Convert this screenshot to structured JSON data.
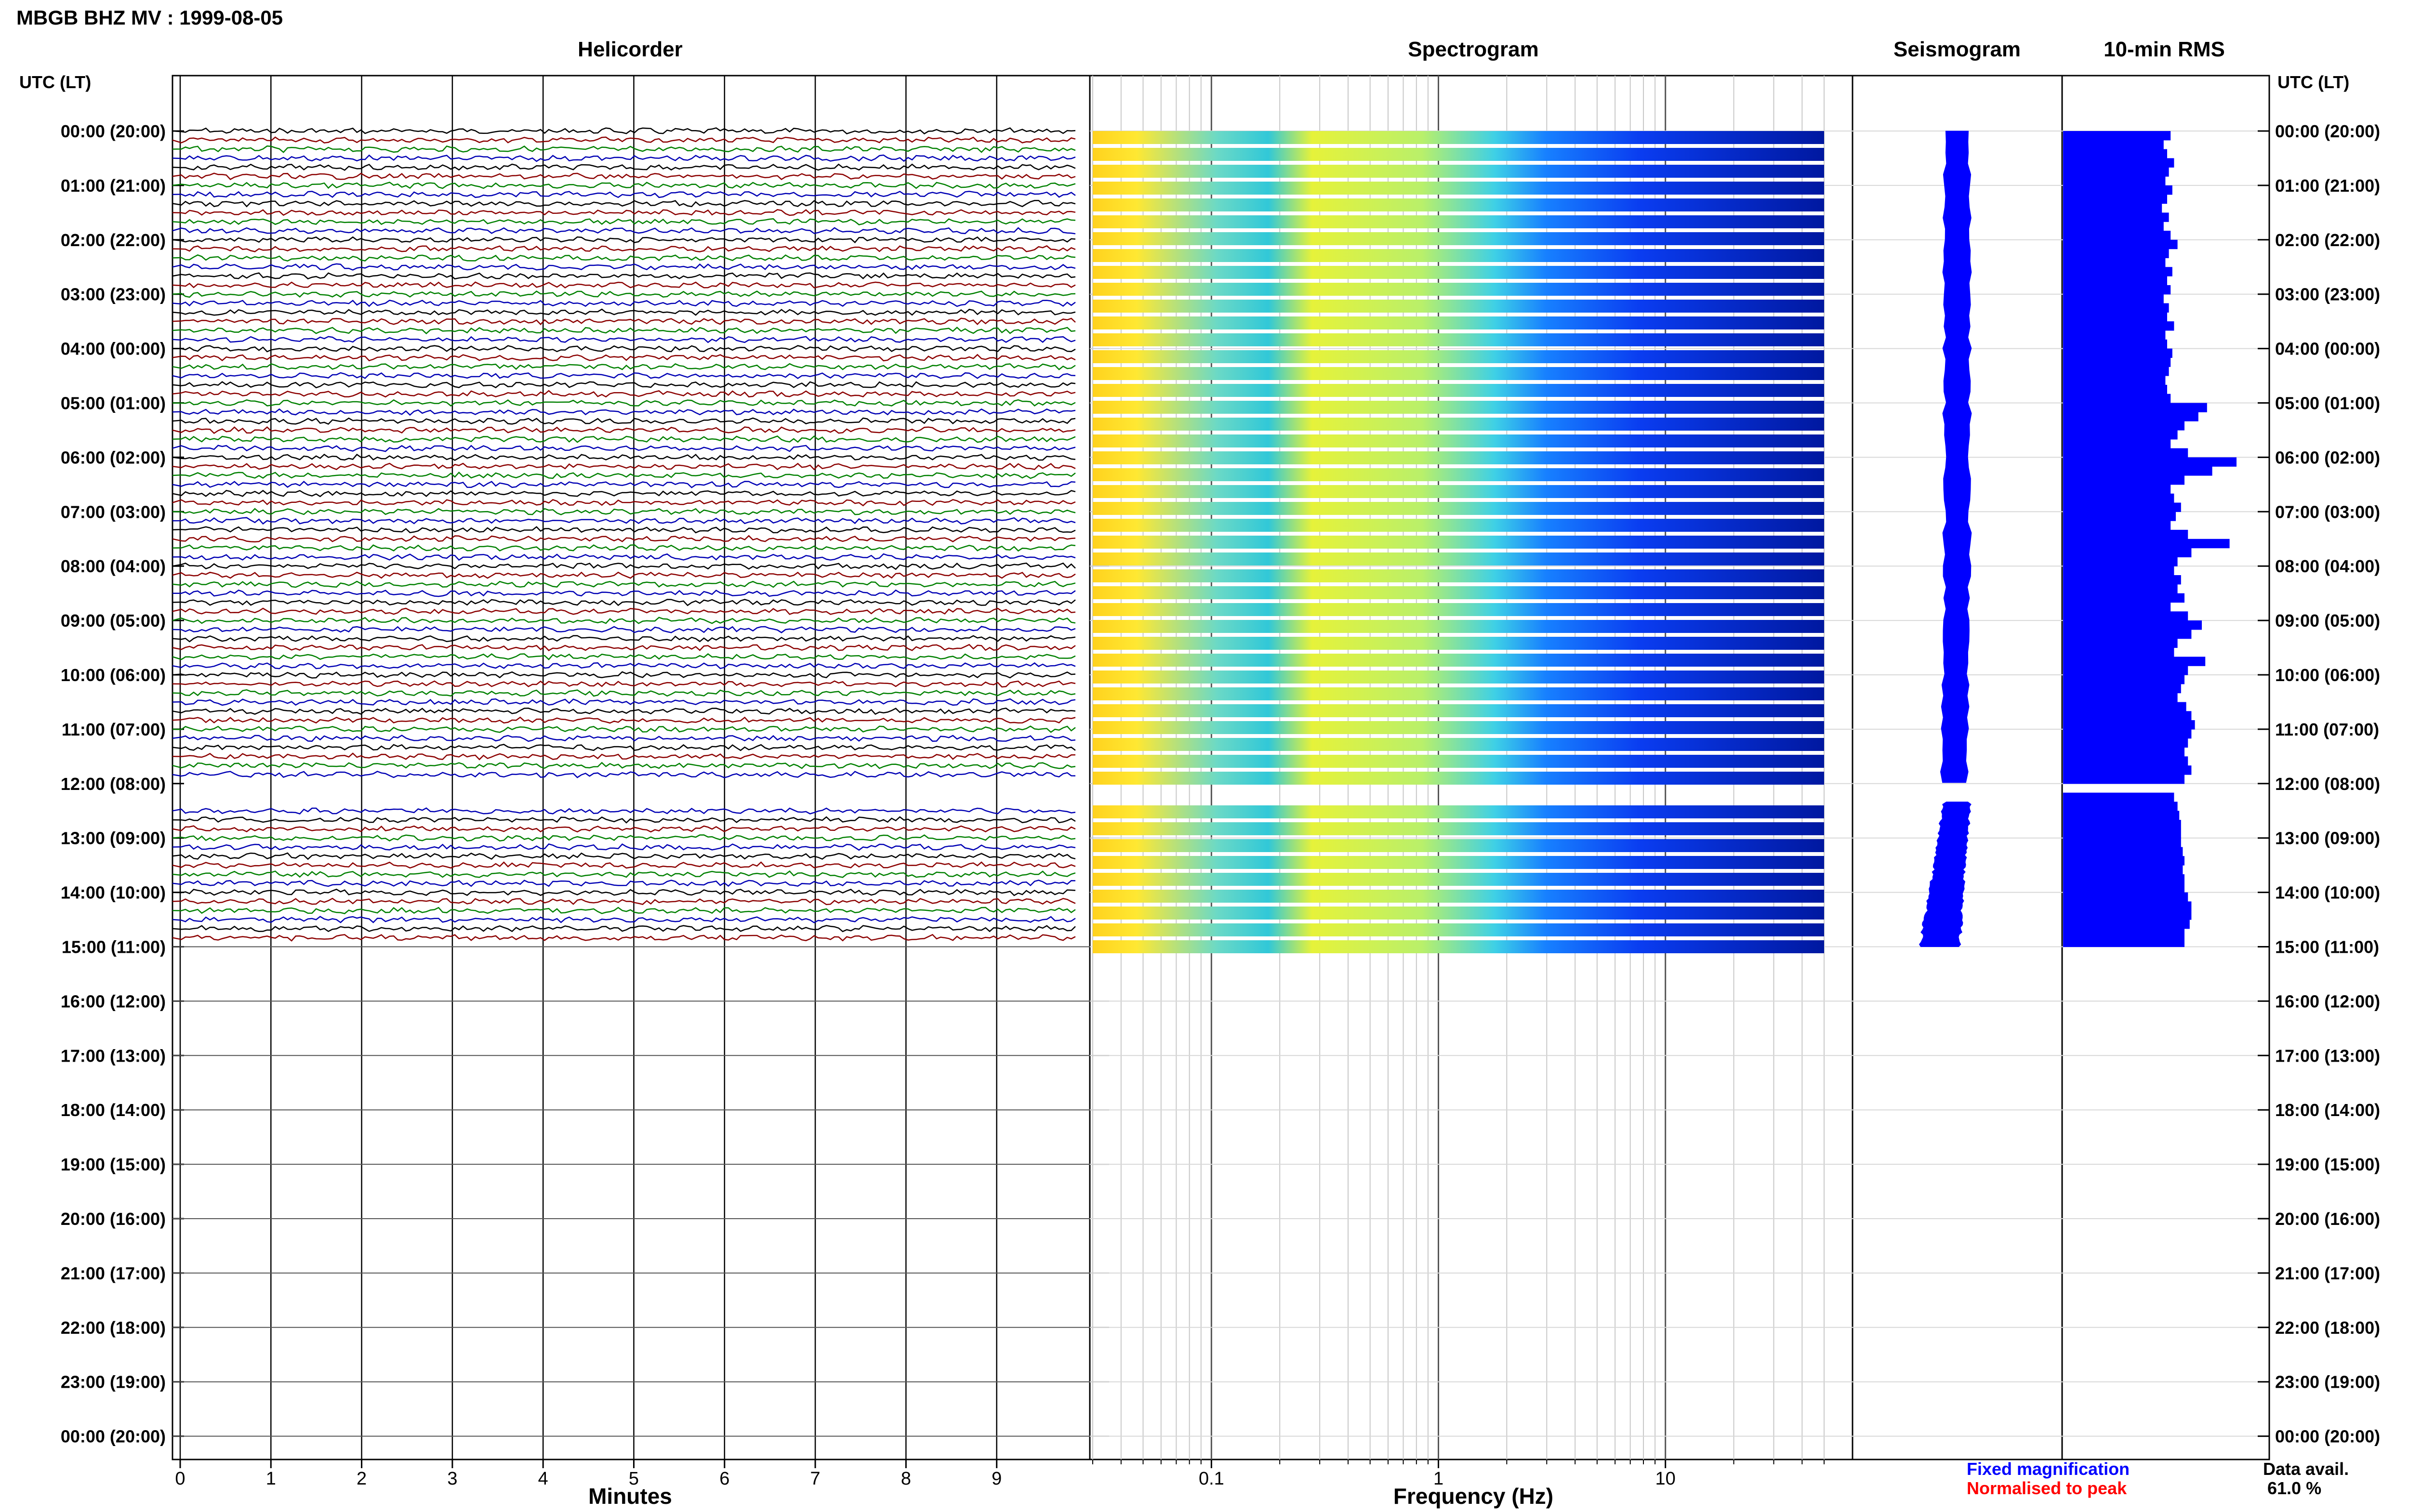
{
  "header": {
    "station_title": "MBGB BHZ MV : 1999-08-05"
  },
  "panels": {
    "helicorder": "Helicorder",
    "spectrogram": "Spectrogram",
    "seismogram": "Seismogram",
    "rms": "10-min RMS"
  },
  "axes": {
    "time_label_left": "UTC (LT)",
    "time_label_right": "UTC (LT)",
    "helicorder_xlabel": "Minutes",
    "spectrogram_xlabel": "Frequency (Hz)",
    "helicorder_ticks": [
      "0",
      "1",
      "2",
      "3",
      "4",
      "5",
      "6",
      "7",
      "8",
      "9"
    ],
    "freq_ticks": [
      "0.1",
      "1",
      "10"
    ],
    "hour_labels": [
      "00:00 (20:00)",
      "01:00 (21:00)",
      "02:00 (22:00)",
      "03:00 (23:00)",
      "04:00 (00:00)",
      "05:00 (01:00)",
      "06:00 (02:00)",
      "07:00 (03:00)",
      "08:00 (04:00)",
      "09:00 (05:00)",
      "10:00 (06:00)",
      "11:00 (07:00)",
      "12:00 (08:00)",
      "13:00 (09:00)",
      "14:00 (10:00)",
      "15:00 (11:00)",
      "16:00 (12:00)",
      "17:00 (13:00)",
      "18:00 (14:00)",
      "19:00 (15:00)",
      "20:00 (16:00)",
      "21:00 (17:00)",
      "22:00 (18:00)",
      "23:00 (19:00)",
      "00:00 (20:00)"
    ]
  },
  "legend": {
    "fixed": "Fixed magnification",
    "normalised": "Normalised to peak",
    "fixed_color": "#0000ff",
    "normalised_color": "#ff0000"
  },
  "data_avail": {
    "label": "Data avail.",
    "value": "61.0 %"
  },
  "chart_data": {
    "type": "helicorder",
    "minutes_range": [
      0,
      10
    ],
    "freq_range_hz": [
      0.03,
      50
    ],
    "freq_scale": "log",
    "hours_shown": 24,
    "data_hours": 15,
    "gap_around_hour": 12,
    "trace_colors": [
      "#000000",
      "#8b0000",
      "#008000",
      "#0000b4"
    ],
    "rms_10min_rel": [
      0.62,
      0.58,
      0.6,
      0.64,
      0.61,
      0.59,
      0.63,
      0.6,
      0.57,
      0.61,
      0.58,
      0.62,
      0.66,
      0.61,
      0.59,
      0.63,
      0.6,
      0.62,
      0.58,
      0.61,
      0.6,
      0.64,
      0.59,
      0.6,
      0.63,
      0.62,
      0.61,
      0.59,
      0.6,
      0.62,
      0.83,
      0.78,
      0.7,
      0.66,
      0.62,
      0.72,
      1.0,
      0.86,
      0.7,
      0.62,
      0.64,
      0.68,
      0.65,
      0.62,
      0.72,
      0.96,
      0.74,
      0.66,
      0.64,
      0.68,
      0.66,
      0.7,
      0.62,
      0.72,
      0.8,
      0.74,
      0.66,
      0.64,
      0.82,
      0.72,
      0.7,
      0.68,
      0.66,
      0.71,
      0.74,
      0.76,
      0.74,
      0.72,
      0.7,
      0.72,
      0.74,
      0.7,
      0.0,
      0.64,
      0.66,
      0.67,
      0.68,
      0.68,
      0.68,
      0.69,
      0.7,
      0.69,
      0.7,
      0.7,
      0.72,
      0.74,
      0.74,
      0.73,
      0.7,
      0.7
    ]
  }
}
